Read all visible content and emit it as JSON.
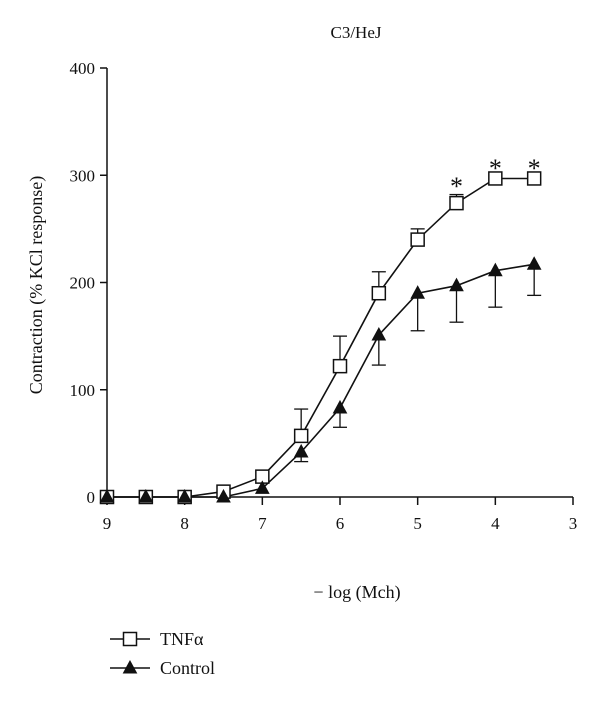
{
  "chart_data": {
    "type": "line",
    "title": "C3/HeJ",
    "xlabel": "− log (Mch)",
    "ylabel": "Contraction (% KCl response)",
    "xlim": [
      9,
      3
    ],
    "ylim": [
      0,
      400
    ],
    "x_ticks": [
      "9",
      "8",
      "7",
      "6",
      "5",
      "4",
      "3"
    ],
    "y_ticks": [
      "0",
      "100",
      "200",
      "300",
      "400"
    ],
    "x": [
      9,
      8.5,
      8,
      7.5,
      7,
      6.5,
      6,
      5.5,
      5,
      4.5,
      4,
      3.5
    ],
    "series": [
      {
        "name": "TNFα",
        "marker": "open-square",
        "color": "#111111",
        "values": [
          0,
          0,
          0,
          5,
          19,
          57,
          122,
          190,
          240,
          274,
          297,
          297
        ],
        "error_upper": [
          null,
          null,
          null,
          null,
          null,
          82,
          150,
          210,
          250,
          282,
          null,
          null
        ]
      },
      {
        "name": "Control",
        "marker": "filled-triangle",
        "color": "#111111",
        "values": [
          0,
          0,
          0,
          0,
          8,
          42,
          83,
          151,
          190,
          197,
          211,
          217
        ],
        "error_lower": [
          null,
          null,
          null,
          null,
          null,
          33,
          65,
          123,
          155,
          163,
          177,
          188
        ]
      }
    ],
    "annotations": [
      {
        "text": "*",
        "x": 4.5,
        "y": 289
      },
      {
        "text": "*",
        "x": 4,
        "y": 306
      },
      {
        "text": "*",
        "x": 3.5,
        "y": 306
      }
    ],
    "grid": false,
    "legend_position": "bottom-left"
  }
}
